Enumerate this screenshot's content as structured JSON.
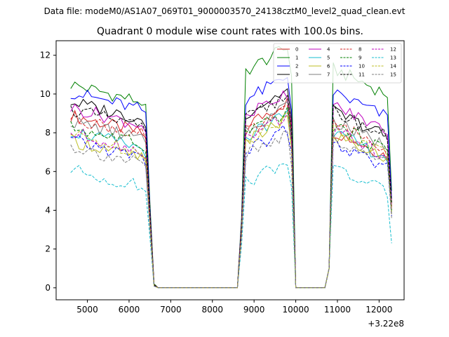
{
  "chart_data": {
    "type": "line",
    "suptitle": "Data file: modeM0/AS1A07_069T01_9000003570_24138cztM0_level2_quad_clean.evt",
    "title": "Quadrant 0 module wise count rates with 100.0s bins.",
    "xlabel": "",
    "ylabel": "",
    "x_offset_label": "+3.22e8",
    "xlim": [
      4250,
      12600
    ],
    "ylim": [
      -0.62,
      12.75
    ],
    "xticks": [
      5000,
      6000,
      7000,
      8000,
      9000,
      10000,
      11000,
      12000
    ],
    "yticks": [
      0,
      2,
      4,
      6,
      8,
      10,
      12
    ],
    "legend_location": "upper right",
    "x_segments": [
      {
        "start": 4600,
        "end": 6400,
        "step": 100
      },
      {
        "start": 6500,
        "end": 6600,
        "step": 100
      },
      {
        "start": 6700,
        "end": 8600,
        "step": 100
      },
      {
        "start": 8700,
        "end": 9900,
        "step": 100
      },
      {
        "start": 10000,
        "end": 10700,
        "step": 100
      },
      {
        "start": 10800,
        "end": 12300,
        "step": 100
      }
    ],
    "series": [
      {
        "name": "0",
        "color": "#d62728",
        "dash": "solid",
        "levels": [
          8.9,
          8.4,
          8.1,
          8.3
        ],
        "trans": [
          3.8,
          0.15,
          3.2,
          4.0,
          0.0,
          4.2
        ]
      },
      {
        "name": "1",
        "color": "#008000",
        "dash": "solid",
        "levels": [
          10.5,
          11.2,
          11.3,
          11.6
        ],
        "trans": [
          4.4,
          0.2,
          3.6,
          4.6,
          0.0,
          5.0
        ]
      },
      {
        "name": "2",
        "color": "#0000ff",
        "dash": "solid",
        "levels": [
          10.1,
          9.7,
          10.1,
          10.3
        ],
        "trans": [
          4.1,
          0.15,
          3.4,
          4.2,
          0.0,
          4.6
        ]
      },
      {
        "name": "3",
        "color": "#000000",
        "dash": "solid",
        "levels": [
          9.6,
          9.0,
          9.1,
          9.5
        ],
        "trans": [
          3.9,
          0.15,
          3.3,
          4.1,
          0.0,
          4.4
        ]
      },
      {
        "name": "4",
        "color": "#bf00bf",
        "dash": "solid",
        "levels": [
          9.3,
          8.9,
          9.4,
          9.2
        ],
        "trans": [
          3.8,
          0.15,
          3.2,
          4.0,
          0.0,
          4.3
        ]
      },
      {
        "name": "5",
        "color": "#17becf",
        "dash": "solid",
        "levels": [
          8.1,
          7.8,
          8.0,
          8.2
        ],
        "trans": [
          3.4,
          0.1,
          2.9,
          3.6,
          0.0,
          4.0
        ]
      },
      {
        "name": "6",
        "color": "#bcbd22",
        "dash": "solid",
        "levels": [
          7.6,
          7.5,
          7.9,
          7.8
        ],
        "trans": [
          3.2,
          0.1,
          2.8,
          3.4,
          0.0,
          3.8
        ]
      },
      {
        "name": "7",
        "color": "#7f7f7f",
        "dash": "solid",
        "levels": [
          8.6,
          8.2,
          8.6,
          8.4
        ],
        "trans": [
          3.6,
          0.12,
          3.0,
          3.8,
          0.0,
          4.1
        ]
      },
      {
        "name": "8",
        "color": "#d62728",
        "dash": "dashed",
        "levels": [
          8.8,
          8.0,
          8.5,
          8.3
        ],
        "trans": [
          3.7,
          0.15,
          3.1,
          3.9,
          0.0,
          4.2
        ]
      },
      {
        "name": "9",
        "color": "#008000",
        "dash": "dashed",
        "levels": [
          8.3,
          7.9,
          8.4,
          8.0
        ],
        "trans": [
          3.5,
          0.12,
          3.0,
          3.7,
          0.0,
          4.0
        ]
      },
      {
        "name": "10",
        "color": "#0000ff",
        "dash": "dashed",
        "levels": [
          7.6,
          7.0,
          7.4,
          7.3
        ],
        "trans": [
          3.2,
          0.1,
          2.7,
          3.4,
          0.0,
          3.7
        ]
      },
      {
        "name": "11",
        "color": "#000000",
        "dash": "dashed",
        "levels": [
          9.2,
          8.7,
          9.1,
          9.4
        ],
        "trans": [
          3.8,
          0.15,
          3.2,
          4.0,
          0.0,
          4.4
        ]
      },
      {
        "name": "12",
        "color": "#bf00bf",
        "dash": "dashed",
        "levels": [
          8.0,
          7.7,
          8.1,
          8.3
        ],
        "trans": [
          3.4,
          0.1,
          2.9,
          3.6,
          0.0,
          4.0
        ]
      },
      {
        "name": "13",
        "color": "#17becf",
        "dash": "dashed",
        "levels": [
          6.1,
          5.4,
          6.2,
          6.0
        ],
        "trans": [
          2.6,
          0.08,
          2.2,
          2.8,
          0.0,
          2.3
        ]
      },
      {
        "name": "14",
        "color": "#bcbd22",
        "dash": "dashed",
        "levels": [
          7.9,
          7.6,
          8.2,
          8.1
        ],
        "trans": [
          3.3,
          0.1,
          2.8,
          3.5,
          0.0,
          3.9
        ]
      },
      {
        "name": "15",
        "color": "#7f7f7f",
        "dash": "dashed",
        "levels": [
          7.3,
          6.8,
          7.7,
          7.6
        ],
        "trans": [
          3.0,
          0.08,
          2.6,
          3.3,
          0.0,
          3.6
        ]
      }
    ]
  }
}
